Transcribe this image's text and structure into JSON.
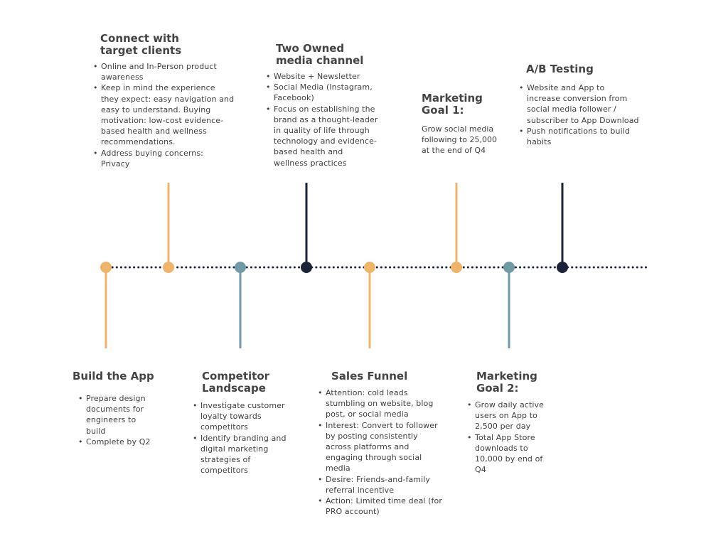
{
  "colors": {
    "orange": "#f0b468",
    "teal": "#6f9aa6",
    "navy": "#1e2438",
    "dotted_line": "#1e2438"
  },
  "timeline": {
    "nodes": [
      {
        "name": "build-the-app",
        "color": "orange",
        "stem": "down"
      },
      {
        "name": "connect-target-clients",
        "color": "orange",
        "stem": "up"
      },
      {
        "name": "competitor-landscape",
        "color": "teal",
        "stem": "down"
      },
      {
        "name": "owned-media-channel",
        "color": "navy",
        "stem": "up"
      },
      {
        "name": "sales-funnel",
        "color": "orange",
        "stem": "down"
      },
      {
        "name": "marketing-goal-1",
        "color": "orange",
        "stem": "up"
      },
      {
        "name": "marketing-goal-2",
        "color": "teal",
        "stem": "down"
      },
      {
        "name": "ab-testing",
        "color": "navy",
        "stem": "up"
      }
    ]
  },
  "milestones": {
    "connect": {
      "title_1": "Connect with",
      "title_2": "target clients",
      "items": [
        "Online and In-Person product awareness",
        "Keep in mind the experience they expect: easy navigation and easy to understand. Buying motivation: low-cost evidence-based health and wellness recommendations.",
        "Address buying concerns: Privacy"
      ]
    },
    "owned_media": {
      "title_1": "Two Owned",
      "title_2": "media channel",
      "items": [
        "Website + Newsletter",
        "Social Media (Instagram, Facebook)",
        "Focus on establishing the brand as a thought-leader in quality of life through technology and evidence-based health and wellness practices"
      ]
    },
    "goal_1": {
      "title_1": "Marketing",
      "title_2": "Goal 1:",
      "text": "Grow social media following to 25,000 at the end of Q4"
    },
    "ab_testing": {
      "title_1": "A/B Testing",
      "items": [
        "Website and App to increase conversion from social media follower / subscriber to App Download",
        "Push notifications to build habits"
      ]
    },
    "build_app": {
      "title_1": "Build the App",
      "items": [
        "Prepare design documents for engineers to build",
        "Complete by Q2"
      ]
    },
    "competitor": {
      "title_1": "Competitor",
      "title_2": "Landscape",
      "items": [
        "Investigate customer loyalty towards competitors",
        "Identify branding and digital marketing strategies of competitors"
      ]
    },
    "sales_funnel": {
      "title_1": "Sales Funnel",
      "items": [
        "Attention: cold leads stumbling on website, blog post, or social media",
        "Interest: Convert to follower by posting consistently across platforms and engaging through social media",
        "Desire: Friends-and-family referral incentive",
        "Action: Limited time deal (for PRO account)"
      ]
    },
    "goal_2": {
      "title_1": "Marketing",
      "title_2": "Goal 2:",
      "items": [
        "Grow daily active users on App to 2,500 per day",
        "Total App Store downloads to 10,000 by end of Q4"
      ]
    }
  }
}
